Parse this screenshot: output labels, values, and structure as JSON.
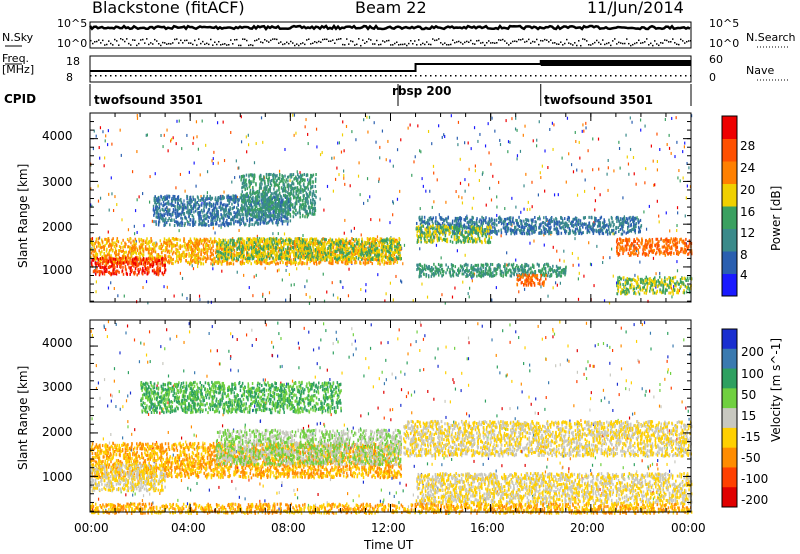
{
  "header": {
    "station": "Blackstone (fitACF)",
    "beam": "Beam 22",
    "date": "11/Jun/2014"
  },
  "top_panels": {
    "nsky_label": "N.Sky",
    "nsky_ticks": [
      "10^5",
      "10^0"
    ],
    "nsearch_label": "N.Search",
    "nsearch_ticks": [
      "10^5",
      "10^0"
    ],
    "freq_label": "Freq.",
    "freq_unit": "[MHz]",
    "freq_ticks": [
      "18",
      "8"
    ],
    "nave_label": "Nave",
    "nave_ticks": [
      "60",
      "0"
    ],
    "cpid_label": "CPID",
    "cpid_segments": [
      {
        "name": "twofsound 3501",
        "start_h": 0,
        "end_h": 12.0
      },
      {
        "name": "rbsp 200",
        "start_h": 12.0,
        "end_h": 18.0
      },
      {
        "name": "twofsound 3501",
        "start_h": 18.0,
        "end_h": 24.0
      }
    ]
  },
  "x_axis": {
    "ticks": [
      "00:00",
      "04:00",
      "08:00",
      "12:00",
      "16:00",
      "20:00",
      "00:00"
    ],
    "label": "Time UT"
  },
  "y_axis": {
    "label": "Slant Range [km]",
    "ticks": [
      "1000",
      "2000",
      "3000",
      "4000"
    ]
  },
  "power_scale": {
    "label": "Power [dB]",
    "ticks": [
      "4",
      "8",
      "12",
      "16",
      "20",
      "24",
      "28"
    ],
    "colors": [
      "#1a1aff",
      "#2a5fb0",
      "#3a8a8a",
      "#3aa060",
      "#f0d000",
      "#ff8000",
      "#ff5000",
      "#ee0000"
    ]
  },
  "velocity_scale": {
    "label": "Velocity [m s^-1]",
    "ticks": [
      "200",
      "100",
      "50",
      "15",
      "-15",
      "-50",
      "-100",
      "-200"
    ],
    "colors": [
      "#1a2fd0",
      "#3a7ab0",
      "#2ea060",
      "#70d040",
      "#c8c8c0",
      "#ffd000",
      "#ff8c00",
      "#ff4000",
      "#e00000"
    ]
  },
  "chart_data": [
    {
      "type": "heatmap",
      "title": "Power [dB]",
      "xlabel": "Time UT",
      "ylabel": "Slant Range [km]",
      "xlim_h": [
        0,
        24
      ],
      "ylim": [
        180,
        4600
      ],
      "bands": [
        {
          "t0": 0.0,
          "t1": 12.4,
          "r0": 1100,
          "r1": 1700,
          "level": 20
        },
        {
          "t0": 0.0,
          "t1": 3.0,
          "r0": 850,
          "r1": 1250,
          "level": 28
        },
        {
          "t0": 5.0,
          "t1": 12.4,
          "r0": 1200,
          "r1": 1700,
          "level": 16
        },
        {
          "t0": 2.5,
          "t1": 8.0,
          "r0": 2000,
          "r1": 2700,
          "level": 8
        },
        {
          "t0": 6.0,
          "t1": 9.0,
          "r0": 2200,
          "r1": 3200,
          "level": 12
        },
        {
          "t0": 13.0,
          "t1": 22.0,
          "r0": 1800,
          "r1": 2200,
          "level": 8
        },
        {
          "t0": 13.0,
          "t1": 16.0,
          "r0": 1600,
          "r1": 2000,
          "level": 16
        },
        {
          "t0": 13.0,
          "t1": 19.0,
          "r0": 800,
          "r1": 1100,
          "level": 12
        },
        {
          "t0": 17.0,
          "t1": 18.2,
          "r0": 600,
          "r1": 850,
          "level": 24
        },
        {
          "t0": 21.0,
          "t1": 24.0,
          "r0": 1300,
          "r1": 1700,
          "level": 24
        },
        {
          "t0": 21.0,
          "t1": 24.0,
          "r0": 400,
          "r1": 800,
          "level": 16
        }
      ]
    },
    {
      "type": "heatmap",
      "title": "Velocity [m s^-1]",
      "xlabel": "Time UT",
      "ylabel": "Slant Range [km]",
      "xlim_h": [
        0,
        24
      ],
      "ylim": [
        180,
        4600
      ],
      "bands": [
        {
          "t0": 0.0,
          "t1": 12.4,
          "r0": 1000,
          "r1": 1800,
          "level": -50
        },
        {
          "t0": 0.0,
          "t1": 3.0,
          "r0": 700,
          "r1": 1300,
          "level": -15
        },
        {
          "t0": 2.0,
          "t1": 10.0,
          "r0": 2500,
          "r1": 3200,
          "level": 50
        },
        {
          "t0": 5.0,
          "t1": 12.4,
          "r0": 1300,
          "r1": 2100,
          "level": 15
        },
        {
          "t0": 12.5,
          "t1": 24.0,
          "r0": 1500,
          "r1": 2300,
          "level": -15
        },
        {
          "t0": 13.0,
          "t1": 24.0,
          "r0": 400,
          "r1": 1100,
          "level": -15
        },
        {
          "t0": 0.0,
          "t1": 24.0,
          "r0": 180,
          "r1": 400,
          "level": -50
        }
      ]
    }
  ]
}
